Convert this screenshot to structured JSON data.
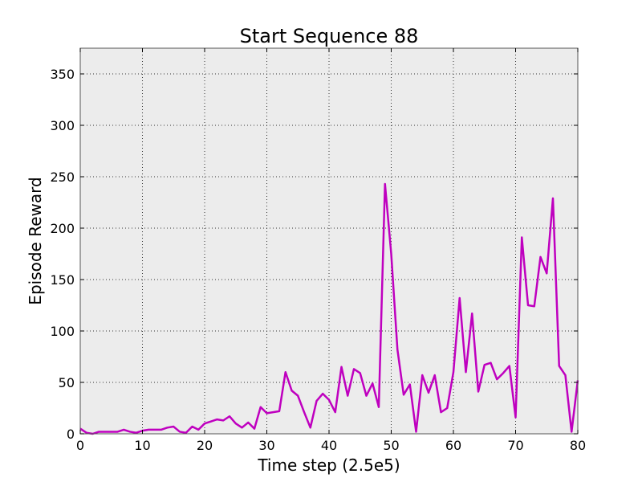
{
  "chart_data": {
    "type": "line",
    "title": "Start Sequence 88",
    "xlabel": "Time step (2.5e5)",
    "ylabel": "Episode Reward",
    "xlim": [
      0,
      80
    ],
    "ylim": [
      0,
      375
    ],
    "xticks": [
      0,
      10,
      20,
      30,
      40,
      50,
      60,
      70,
      80
    ],
    "yticks": [
      0,
      50,
      100,
      150,
      200,
      250,
      300,
      350
    ],
    "grid": true,
    "background_color": "#ececec",
    "series": [
      {
        "color": "#bf00bf",
        "x": [
          0,
          1,
          2,
          3,
          4,
          5,
          6,
          7,
          8,
          9,
          10,
          11,
          12,
          13,
          14,
          15,
          16,
          17,
          18,
          19,
          20,
          21,
          22,
          23,
          24,
          25,
          26,
          27,
          28,
          29,
          30,
          31,
          32,
          33,
          34,
          35,
          36,
          37,
          38,
          39,
          40,
          41,
          42,
          43,
          44,
          45,
          46,
          47,
          48,
          49,
          50,
          51,
          52,
          53,
          54,
          55,
          56,
          57,
          58,
          59,
          60,
          61,
          62,
          63,
          64,
          65,
          66,
          67,
          68,
          69,
          70,
          71,
          72,
          73,
          74,
          75,
          76,
          77,
          78,
          79,
          80
        ],
        "y": [
          5,
          1,
          0,
          2,
          2,
          2,
          2,
          4,
          2,
          1,
          3,
          4,
          4,
          4,
          6,
          7,
          2,
          1,
          7,
          4,
          10,
          12,
          14,
          13,
          17,
          10,
          6,
          11,
          5,
          26,
          20,
          21,
          22,
          60,
          42,
          37,
          21,
          6,
          32,
          39,
          33,
          21,
          65,
          37,
          63,
          59,
          37,
          49,
          26,
          243,
          175,
          82,
          38,
          48,
          2,
          57,
          40,
          57,
          21,
          25,
          60,
          132,
          60,
          117,
          41,
          67,
          69,
          53,
          59,
          66,
          16,
          191,
          125,
          124,
          172,
          156,
          229,
          66,
          57,
          2,
          52
        ]
      }
    ]
  }
}
